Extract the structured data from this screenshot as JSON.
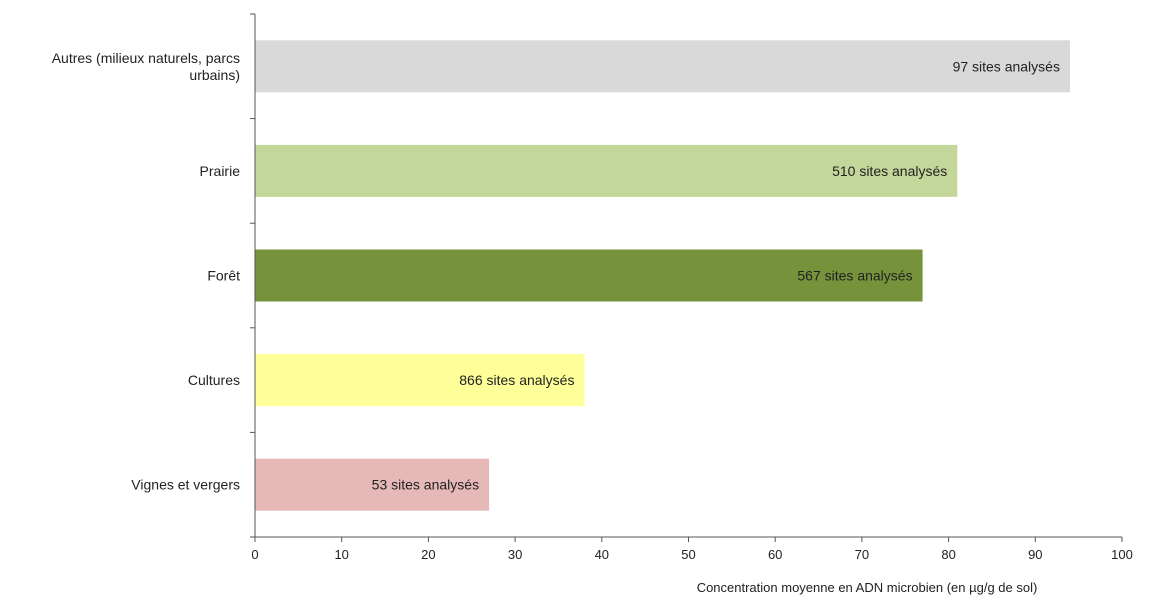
{
  "chart_data": {
    "type": "bar",
    "orientation": "horizontal",
    "title": "",
    "xlabel": "Concentration  moyenne en ADN microbien (en µg/g de sol)",
    "ylabel": "",
    "xlim": [
      0,
      100
    ],
    "xticks": [
      0,
      10,
      20,
      30,
      40,
      50,
      60,
      70,
      80,
      90,
      100
    ],
    "grid": false,
    "legend": "none",
    "categories": [
      {
        "label_lines": [
          "Autres (milieux naturels, parcs",
          "urbains)"
        ],
        "value": 94,
        "annotation": "97 sites analysés",
        "color": "#d9d9d9"
      },
      {
        "label_lines": [
          "Prairie"
        ],
        "value": 81,
        "annotation": "510 sites analysés",
        "color": "#c4d79b"
      },
      {
        "label_lines": [
          "Forêt"
        ],
        "value": 77,
        "annotation": "567 sites analysés",
        "color": "#76933c"
      },
      {
        "label_lines": [
          "Cultures"
        ],
        "value": 38,
        "annotation": "866 sites analysés",
        "color": "#ffff99"
      },
      {
        "label_lines": [
          "Vignes et vergers"
        ],
        "value": 27,
        "annotation": "53 sites analysés",
        "color": "#e6b9b8"
      }
    ]
  }
}
